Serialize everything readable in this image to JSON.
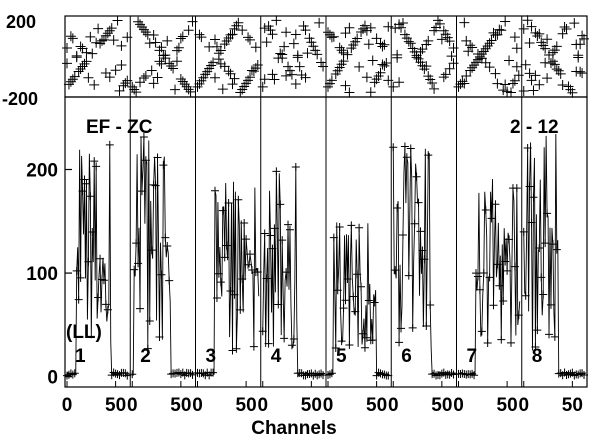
{
  "chart_data": [
    {
      "type": "scatter",
      "panel": "phase",
      "ylim": [
        -200,
        200
      ],
      "yticks": [
        "200",
        "-200"
      ],
      "subpanels": 8,
      "marker": "plus"
    },
    {
      "type": "line",
      "panel": "amplitude",
      "title": "EF - ZC",
      "subtitle": "2 - 12",
      "polarization": "(LL)",
      "ylim": [
        -10,
        270
      ],
      "yticks": [
        "200",
        "100",
        "0"
      ],
      "xlabel": "Channels",
      "xtick_pairs": [
        "0",
        "50"
      ],
      "subpanel_labels": [
        "1",
        "2",
        "3",
        "4",
        "5",
        "6",
        "7",
        "8"
      ],
      "subpanels_channels": 64,
      "marker": "plus",
      "series_shape": [
        {
          "flat_start": 0,
          "flat_end": 10,
          "active_end": 46,
          "peak": 230
        },
        {
          "flat_start": 0,
          "flat_end": 2,
          "active_end": 40,
          "peak": 240
        },
        {
          "flat_start": 0,
          "flat_end": 18,
          "active_end": 64,
          "peak": 195
        },
        {
          "flat_start": 0,
          "flat_end": 0,
          "active_end": 36,
          "peak": 210
        },
        {
          "flat_start": 0,
          "flat_end": 6,
          "active_end": 50,
          "peak": 150
        },
        {
          "flat_start": 0,
          "flat_end": 0,
          "active_end": 40,
          "peak": 225
        },
        {
          "flat_start": 0,
          "flat_end": 18,
          "active_end": 64,
          "peak": 195
        },
        {
          "flat_start": 0,
          "flat_end": 0,
          "active_end": 36,
          "peak": 235
        }
      ]
    }
  ]
}
